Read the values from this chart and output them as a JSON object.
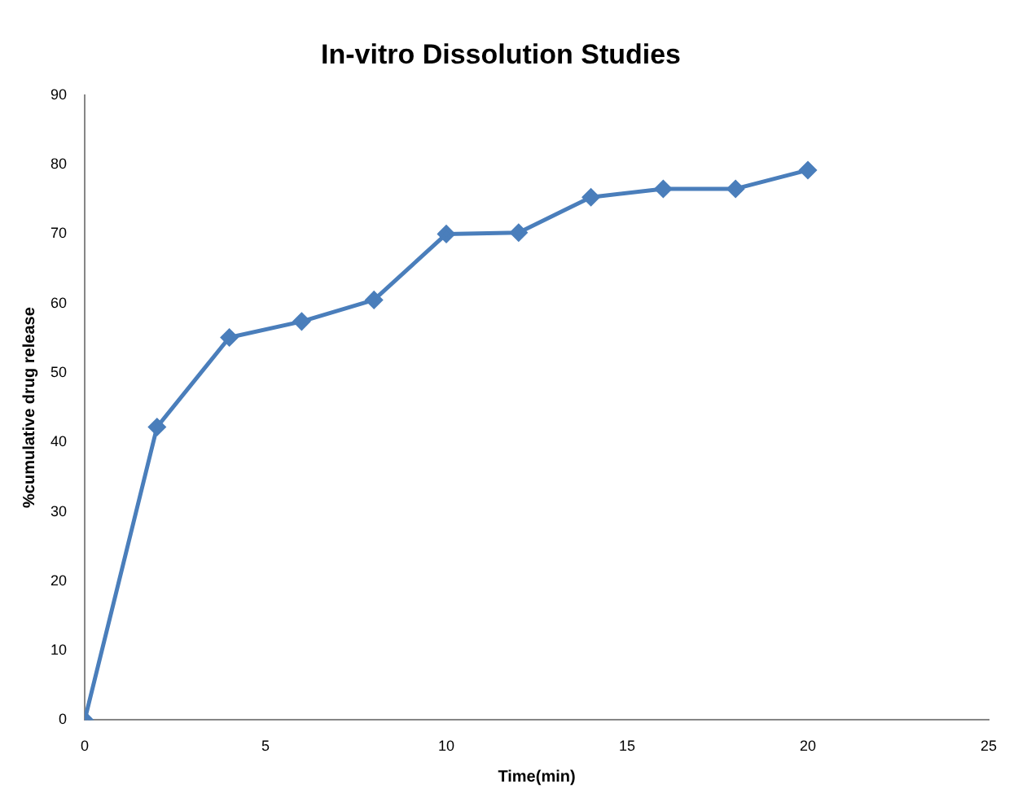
{
  "chart_data": {
    "type": "line",
    "title": "In-vitro Dissolution Studies",
    "xlabel": "Time(min)",
    "ylabel": "%cumulative drug release",
    "x": [
      0,
      2,
      4,
      6,
      8,
      10,
      12,
      14,
      16,
      18,
      20
    ],
    "series": [
      {
        "color": "#4a7ebb",
        "values": [
          0,
          42.2,
          55.1,
          57.4,
          60.5,
          70.0,
          70.2,
          75.3,
          76.5,
          76.5,
          79.2
        ]
      }
    ],
    "xlim": [
      0,
      25
    ],
    "xticks": [
      0,
      5,
      10,
      15,
      20,
      25
    ],
    "ylim": [
      0,
      90
    ],
    "yticks": [
      0,
      10,
      20,
      30,
      40,
      50,
      60,
      70,
      80,
      90
    ],
    "grid": false,
    "legend": false,
    "marker": "diamond",
    "line_style": "solid"
  }
}
